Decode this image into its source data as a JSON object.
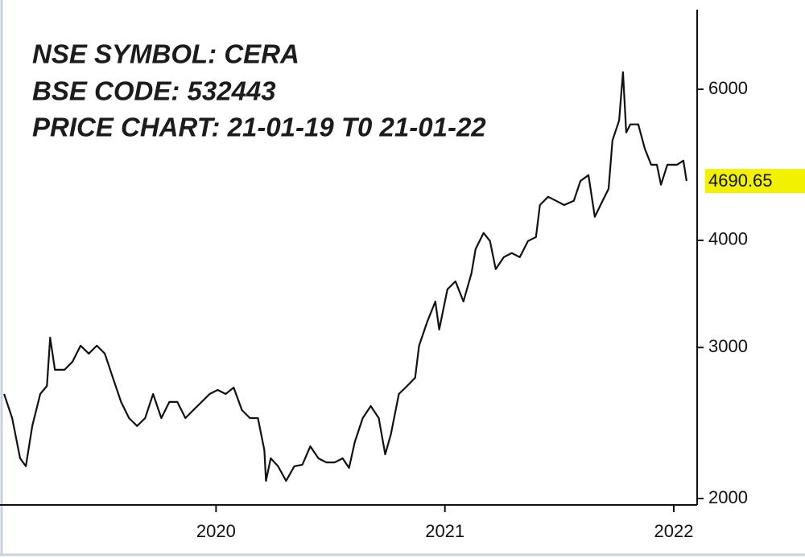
{
  "chart_data": {
    "type": "line",
    "annotations": [
      "NSE SYMBOL: CERA",
      "BSE CODE: 532443",
      "PRICE CHART: 21-01-19 T0 21-01-22"
    ],
    "x": [
      2019.074,
      2019.109,
      2019.144,
      2019.169,
      2019.197,
      2019.232,
      2019.261,
      2019.275,
      2019.296,
      2019.338,
      2019.373,
      2019.408,
      2019.444,
      2019.479,
      2019.514,
      2019.549,
      2019.585,
      2019.62,
      2019.655,
      2019.69,
      2019.725,
      2019.761,
      2019.796,
      2019.831,
      2019.866,
      2019.901,
      2019.937,
      2019.972,
      2020.007,
      2020.042,
      2020.077,
      2020.113,
      2020.148,
      2020.183,
      2020.211,
      2020.218,
      2020.239,
      2020.271,
      2020.306,
      2020.342,
      2020.377,
      2020.412,
      2020.447,
      2020.482,
      2020.518,
      2020.553,
      2020.581,
      2020.606,
      2020.641,
      2020.676,
      2020.711,
      2020.739,
      2020.764,
      2020.799,
      2020.835,
      2020.87,
      2020.887,
      2020.923,
      2020.958,
      2020.975,
      2021.011,
      2021.046,
      2021.081,
      2021.116,
      2021.134,
      2021.169,
      2021.197,
      2021.222,
      2021.257,
      2021.292,
      2021.327,
      2021.363,
      2021.398,
      2021.415,
      2021.451,
      2021.486,
      2021.521,
      2021.563,
      2021.592,
      2021.627,
      2021.655,
      2021.68,
      2021.715,
      2021.732,
      2021.761,
      2021.778,
      2021.792,
      2021.81,
      2021.845,
      2021.873,
      2021.901,
      2021.926,
      2021.944,
      2021.972,
      2022.014,
      2022.042,
      2022.056
    ],
    "values": [
      2648,
      2482,
      2228,
      2181,
      2430,
      2648,
      2706,
      3081,
      2826,
      2826,
      2888,
      3015,
      2951,
      3015,
      2951,
      2766,
      2592,
      2482,
      2430,
      2482,
      2648,
      2482,
      2592,
      2592,
      2482,
      2536,
      2592,
      2648,
      2677,
      2648,
      2694,
      2536,
      2482,
      2482,
      2277,
      2097,
      2228,
      2181,
      2097,
      2181,
      2190,
      2301,
      2228,
      2204,
      2204,
      2228,
      2171,
      2327,
      2482,
      2564,
      2482,
      2252,
      2377,
      2648,
      2706,
      2766,
      3015,
      3216,
      3394,
      3148,
      3507,
      3583,
      3394,
      3662,
      3908,
      4080,
      3992,
      3702,
      3823,
      3866,
      3823,
      3992,
      4036,
      4398,
      4496,
      4447,
      4398,
      4447,
      4691,
      4765,
      4260,
      4398,
      4594,
      5229,
      5519,
      6283,
      5344,
      5460,
      5460,
      5118,
      4900,
      4900,
      4644,
      4900,
      4900,
      4954,
      4690.65
    ],
    "color": "#111111",
    "last_value": 4690.65,
    "last_value_color": "#f2f200",
    "xlim": [
      2019.056,
      2022.102
    ],
    "xticks": [
      2020,
      2021,
      2022
    ],
    "ylim": [
      1966,
      7430
    ],
    "yticks": [
      2000,
      3000,
      4000,
      6000
    ],
    "log_scale_y": true,
    "grid": false
  }
}
